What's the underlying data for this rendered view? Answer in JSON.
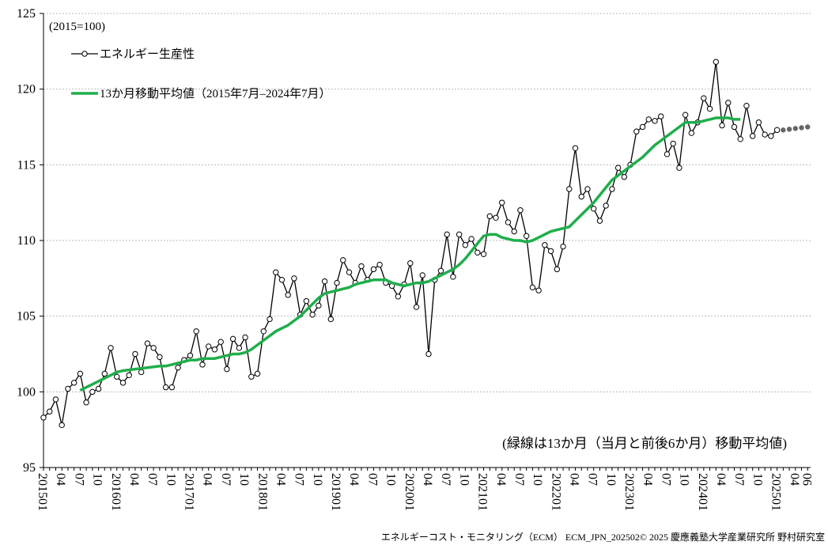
{
  "chart_data": {
    "type": "line",
    "annotations": [
      "(2015=100)",
      "(緑線は13か月（当月と前後6か月）移動平均値)"
    ],
    "footer": "エネルギーコスト・モニタリング（ECM） ECM_JPN_202502© 2025 慶應義塾大学産業研究所 野村研究室",
    "categories": [
      "201501",
      null,
      null,
      "04",
      null,
      null,
      "07",
      null,
      null,
      "10",
      null,
      null,
      "201601",
      null,
      null,
      "04",
      null,
      null,
      "07",
      null,
      null,
      "10",
      null,
      null,
      "201701",
      null,
      null,
      "04",
      null,
      null,
      "07",
      null,
      null,
      "10",
      null,
      null,
      "201801",
      null,
      null,
      "04",
      null,
      null,
      "07",
      null,
      null,
      "10",
      null,
      null,
      "201901",
      null,
      null,
      "04",
      null,
      null,
      "07",
      null,
      null,
      "10",
      null,
      null,
      "202001",
      null,
      null,
      "04",
      null,
      null,
      "07",
      null,
      null,
      "10",
      null,
      null,
      "202101",
      null,
      null,
      "04",
      null,
      null,
      "07",
      null,
      null,
      "10",
      null,
      null,
      "202201",
      null,
      null,
      "04",
      null,
      null,
      "07",
      null,
      null,
      "10",
      null,
      null,
      "202301",
      null,
      null,
      "04",
      null,
      null,
      "07",
      null,
      null,
      "10",
      null,
      null,
      "202401",
      null,
      null,
      "04",
      null,
      null,
      "07",
      null,
      null,
      "10",
      null,
      null,
      "202501",
      null,
      null,
      "04",
      null,
      "06"
    ],
    "series": [
      {
        "name": "エネルギー生産性",
        "color": "#000000",
        "marker": "open",
        "values": [
          98.3,
          98.7,
          99.5,
          97.8,
          100.2,
          100.6,
          101.2,
          99.3,
          100.0,
          100.2,
          101.2,
          102.9,
          101.0,
          100.6,
          101.1,
          102.5,
          101.3,
          103.2,
          102.9,
          102.3,
          100.3,
          100.3,
          101.6,
          102.1,
          102.4,
          104.0,
          101.8,
          103.0,
          102.8,
          103.3,
          101.5,
          103.5,
          102.9,
          103.6,
          101.0,
          101.2,
          104.0,
          104.8,
          107.9,
          107.4,
          106.4,
          107.5,
          105.1,
          106.0,
          105.1,
          105.7,
          107.3,
          104.8,
          107.2,
          108.7,
          107.9,
          107.2,
          108.3,
          107.4,
          108.1,
          108.4,
          107.2,
          107.0,
          106.3,
          107.1,
          108.5,
          105.6,
          107.7,
          102.5,
          107.4,
          108.0,
          110.4,
          107.6,
          110.4,
          109.7,
          110.1,
          109.2,
          109.1,
          111.6,
          111.5,
          112.5,
          111.2,
          110.6,
          112.0,
          110.3,
          106.9,
          106.7,
          109.7,
          109.3,
          108.1,
          109.6,
          113.4,
          116.1,
          112.9,
          113.4,
          112.1,
          111.3,
          112.3,
          113.4,
          114.8,
          114.2,
          115.0,
          117.2,
          117.5,
          118.0,
          117.9,
          118.2,
          115.7,
          116.4,
          114.8,
          118.3,
          117.1,
          117.8,
          119.4,
          118.7,
          121.8,
          117.6,
          119.1,
          117.5,
          116.7,
          118.9,
          116.9,
          117.8,
          117.0,
          116.9,
          117.3,
          null,
          null,
          null,
          null,
          null
        ]
      },
      {
        "name": "13か月移動平均値（2015年7月–2024年7月）",
        "color": "#1fae4b",
        "marker": "none",
        "values": [
          null,
          null,
          null,
          null,
          null,
          null,
          100.1,
          100.3,
          100.5,
          100.7,
          100.9,
          101.1,
          101.3,
          101.4,
          101.45,
          101.5,
          101.55,
          101.6,
          101.65,
          101.7,
          101.7,
          101.8,
          101.9,
          102.0,
          102.1,
          102.1,
          102.2,
          102.2,
          102.2,
          102.3,
          102.4,
          102.5,
          102.5,
          102.6,
          102.8,
          103.1,
          103.4,
          103.7,
          104.0,
          104.2,
          104.4,
          104.7,
          105.0,
          105.4,
          105.8,
          106.2,
          106.5,
          106.6,
          106.7,
          106.8,
          106.9,
          107.1,
          107.2,
          107.3,
          107.4,
          107.4,
          107.4,
          107.2,
          107.1,
          107.0,
          107.1,
          107.2,
          107.2,
          107.3,
          107.5,
          107.7,
          107.9,
          108.1,
          108.4,
          108.8,
          109.3,
          109.8,
          110.3,
          110.4,
          110.4,
          110.2,
          110.1,
          110.0,
          110.0,
          109.9,
          110.0,
          110.2,
          110.4,
          110.6,
          110.7,
          110.8,
          110.9,
          111.3,
          111.7,
          112.1,
          112.5,
          113.0,
          113.5,
          114.0,
          114.3,
          114.6,
          114.9,
          115.2,
          115.5,
          115.9,
          116.3,
          116.6,
          116.9,
          117.2,
          117.5,
          117.8,
          117.8,
          117.8,
          117.9,
          118.0,
          118.1,
          118.1,
          118.1,
          118.0,
          118.0,
          null,
          null,
          null,
          null,
          null,
          null,
          null,
          null,
          null,
          null,
          null
        ]
      },
      {
        "color": "#666666",
        "marker": "filled",
        "values": [
          null,
          null,
          null,
          null,
          null,
          null,
          null,
          null,
          null,
          null,
          null,
          null,
          null,
          null,
          null,
          null,
          null,
          null,
          null,
          null,
          null,
          null,
          null,
          null,
          null,
          null,
          null,
          null,
          null,
          null,
          null,
          null,
          null,
          null,
          null,
          null,
          null,
          null,
          null,
          null,
          null,
          null,
          null,
          null,
          null,
          null,
          null,
          null,
          null,
          null,
          null,
          null,
          null,
          null,
          null,
          null,
          null,
          null,
          null,
          null,
          null,
          null,
          null,
          null,
          null,
          null,
          null,
          null,
          null,
          null,
          null,
          null,
          null,
          null,
          null,
          null,
          null,
          null,
          null,
          null,
          null,
          null,
          null,
          null,
          null,
          null,
          null,
          null,
          null,
          null,
          null,
          null,
          null,
          null,
          null,
          null,
          null,
          null,
          null,
          null,
          null,
          null,
          null,
          null,
          null,
          null,
          null,
          null,
          null,
          null,
          null,
          null,
          null,
          null,
          null,
          null,
          null,
          null,
          null,
          null,
          null,
          117.3,
          117.35,
          117.4,
          117.45,
          117.5
        ]
      }
    ],
    "ylim": [
      95,
      125
    ],
    "yticks": [
      95,
      100,
      105,
      110,
      115,
      120,
      125
    ],
    "grid": true
  }
}
